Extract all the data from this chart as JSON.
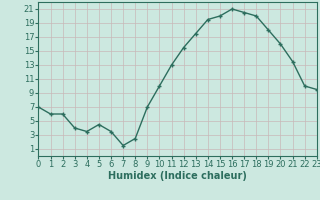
{
  "x": [
    0,
    1,
    2,
    3,
    4,
    5,
    6,
    7,
    8,
    9,
    10,
    11,
    12,
    13,
    14,
    15,
    16,
    17,
    18,
    19,
    20,
    21,
    22,
    23
  ],
  "y": [
    7.0,
    6.0,
    6.0,
    4.0,
    3.5,
    4.5,
    3.5,
    1.5,
    2.5,
    7.0,
    10.0,
    13.0,
    15.5,
    17.5,
    19.5,
    20.0,
    21.0,
    20.5,
    20.0,
    18.0,
    16.0,
    13.5,
    10.0,
    9.5
  ],
  "line_color": "#2d6e5e",
  "marker_color": "#2d6e5e",
  "bg_color": "#cce8e0",
  "grid_color": "#c8b8b8",
  "xlabel": "Humidex (Indice chaleur)",
  "xlim": [
    0,
    23
  ],
  "ylim": [
    0,
    22
  ],
  "yticks": [
    1,
    3,
    5,
    7,
    9,
    11,
    13,
    15,
    17,
    19,
    21
  ],
  "xticks": [
    0,
    1,
    2,
    3,
    4,
    5,
    6,
    7,
    8,
    9,
    10,
    11,
    12,
    13,
    14,
    15,
    16,
    17,
    18,
    19,
    20,
    21,
    22,
    23
  ],
  "tick_color": "#2d6e5e",
  "font_size_xlabel": 7,
  "font_size_ticks": 6,
  "marker_size": 2.5,
  "line_width": 1.0
}
